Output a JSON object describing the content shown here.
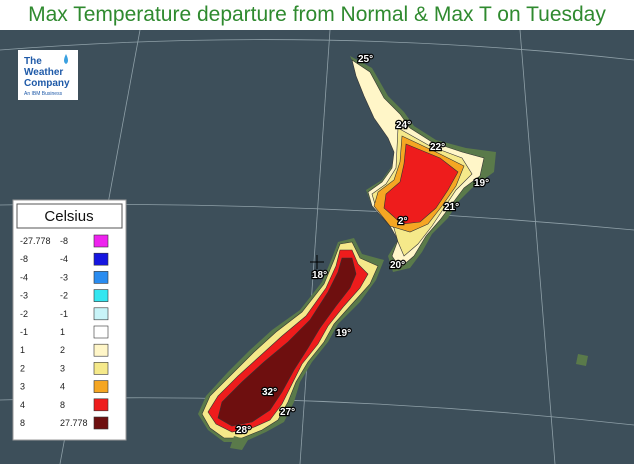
{
  "header": {
    "title": "Max Temperature departure from Normal & Max T on Tuesday"
  },
  "logo": {
    "line1": "The",
    "line2": "Weather",
    "line3": "Company",
    "tagline": "An IBM Business"
  },
  "legend": {
    "title": "Celsius",
    "rows": [
      {
        "low": -27.778,
        "high": -8,
        "color": "#ee22ee"
      },
      {
        "low": -8,
        "high": -4,
        "color": "#1515e0"
      },
      {
        "low": -4,
        "high": -3,
        "color": "#2a8cf0"
      },
      {
        "low": -3,
        "high": -2,
        "color": "#33e6f0"
      },
      {
        "low": -2,
        "high": -1,
        "color": "#c8f4f8"
      },
      {
        "low": -1,
        "high": 1,
        "color": "#ffffff"
      },
      {
        "low": 1,
        "high": 2,
        "color": "#fff6c8"
      },
      {
        "low": 2,
        "high": 3,
        "color": "#f5e98a"
      },
      {
        "low": 3,
        "high": 4,
        "color": "#f5a623"
      },
      {
        "low": 4,
        "high": 8,
        "color": "#ee1c1c"
      },
      {
        "low": 8,
        "high": 27.778,
        "color": "#6e0f0f"
      }
    ]
  },
  "map_labels": [
    "25°",
    "24°",
    "22°",
    "19°",
    "21°",
    "2°",
    "20°",
    "18°",
    "19°",
    "32°",
    "27°",
    "28°"
  ]
}
